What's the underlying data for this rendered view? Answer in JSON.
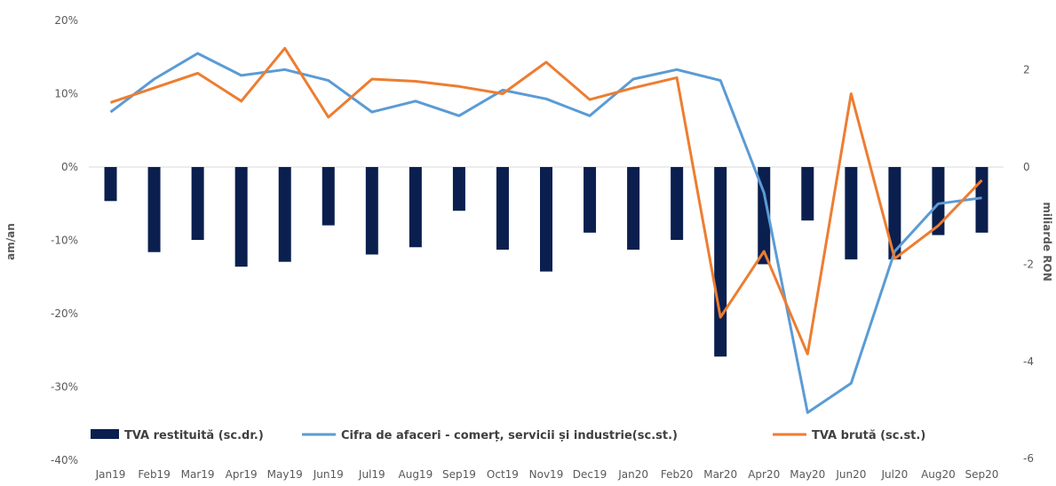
{
  "chart_data": {
    "type": "bar+line",
    "title": "",
    "categories": [
      "Jan19",
      "Feb19",
      "Mar19",
      "Apr19",
      "May19",
      "Jun19",
      "Jul19",
      "Aug19",
      "Sep19",
      "Oct19",
      "Nov19",
      "Dec19",
      "Jan20",
      "Feb20",
      "Mar20",
      "Apr20",
      "May20",
      "Jun20",
      "Jul20",
      "Aug20",
      "Sep20"
    ],
    "y_left": {
      "label": "am/an",
      "ticks": [
        "20%",
        "10%",
        "0%",
        "-10%",
        "-20%",
        "-30%",
        "-40%"
      ],
      "min": -40,
      "max": 20
    },
    "y_right": {
      "label": "miliarde RON",
      "ticks": [
        "2",
        "0",
        "-2",
        "-4",
        "-6"
      ],
      "min": -6,
      "max": 3
    },
    "series": [
      {
        "name": "TVA restituită (sc.dr.)",
        "type": "bar",
        "axis": "right",
        "color": "#0b1f4f",
        "values": [
          -0.7,
          -1.75,
          -1.5,
          -2.05,
          -1.95,
          -1.2,
          -1.8,
          -1.65,
          -0.9,
          -1.7,
          -2.15,
          -1.35,
          -1.7,
          -1.5,
          -3.9,
          -2.0,
          -1.1,
          -1.9,
          -1.9,
          -1.4,
          -1.35
        ]
      },
      {
        "name": "Cifra de afaceri - comerț, servicii și industrie(sc.st.)",
        "type": "line",
        "axis": "left",
        "color": "#5b9bd5",
        "values": [
          7.5,
          12.0,
          15.5,
          12.5,
          13.3,
          11.8,
          7.5,
          9.0,
          7.0,
          10.5,
          9.3,
          7.0,
          12.0,
          13.3,
          11.8,
          -3.5,
          -33.5,
          -29.5,
          -11.5,
          -5.0,
          -4.2
        ]
      },
      {
        "name": "TVA brută (sc.st.)",
        "type": "line",
        "axis": "left",
        "color": "#ed7d31",
        "values": [
          8.8,
          10.8,
          12.8,
          9.0,
          16.2,
          6.8,
          12.0,
          11.7,
          11.0,
          10.0,
          14.3,
          9.2,
          10.8,
          12.2,
          -20.5,
          -11.5,
          -25.5,
          10.0,
          -12.5,
          -8.0,
          -1.8
        ]
      }
    ],
    "legend_position": "bottom-inside",
    "grid": false
  }
}
